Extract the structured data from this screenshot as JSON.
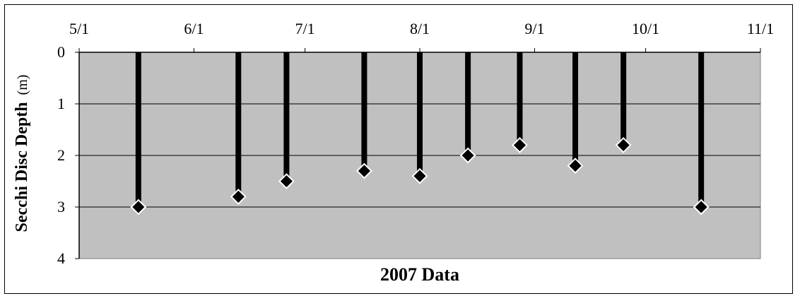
{
  "chart_data": {
    "type": "scatter",
    "title": "",
    "xlabel": "2007 Data",
    "ylabel": "Secchi Disc Depth",
    "ylabel_unit": "(m)",
    "x_axis_position": "top",
    "y_inverted": true,
    "ylim": [
      0,
      4
    ],
    "y_ticks": [
      "0",
      "1",
      "2",
      "3",
      "4"
    ],
    "xlim": [
      "2007-05-01",
      "2007-11-01"
    ],
    "x_ticks": [
      {
        "date": "2007-05-01",
        "label": "5/1"
      },
      {
        "date": "2007-06-01",
        "label": "6/1"
      },
      {
        "date": "2007-07-01",
        "label": "7/1"
      },
      {
        "date": "2007-08-01",
        "label": "8/1"
      },
      {
        "date": "2007-09-01",
        "label": "9/1"
      },
      {
        "date": "2007-10-01",
        "label": "10/1"
      },
      {
        "date": "2007-11-01",
        "label": "11/1"
      }
    ],
    "grid": true,
    "legend": "none",
    "plot_background": "#c0c0c0",
    "drop_lines": true,
    "series": [
      {
        "marker": "diamond",
        "color": "#000000",
        "points": [
          {
            "x": "2007-05-17",
            "y": 3.0
          },
          {
            "x": "2007-06-13",
            "y": 2.8
          },
          {
            "x": "2007-06-26",
            "y": 2.5
          },
          {
            "x": "2007-07-17",
            "y": 2.3
          },
          {
            "x": "2007-08-01",
            "y": 2.4
          },
          {
            "x": "2007-08-14",
            "y": 2.0
          },
          {
            "x": "2007-08-28",
            "y": 1.8
          },
          {
            "x": "2007-09-12",
            "y": 2.2
          },
          {
            "x": "2007-09-25",
            "y": 1.8
          },
          {
            "x": "2007-10-16",
            "y": 3.0
          }
        ]
      }
    ]
  }
}
